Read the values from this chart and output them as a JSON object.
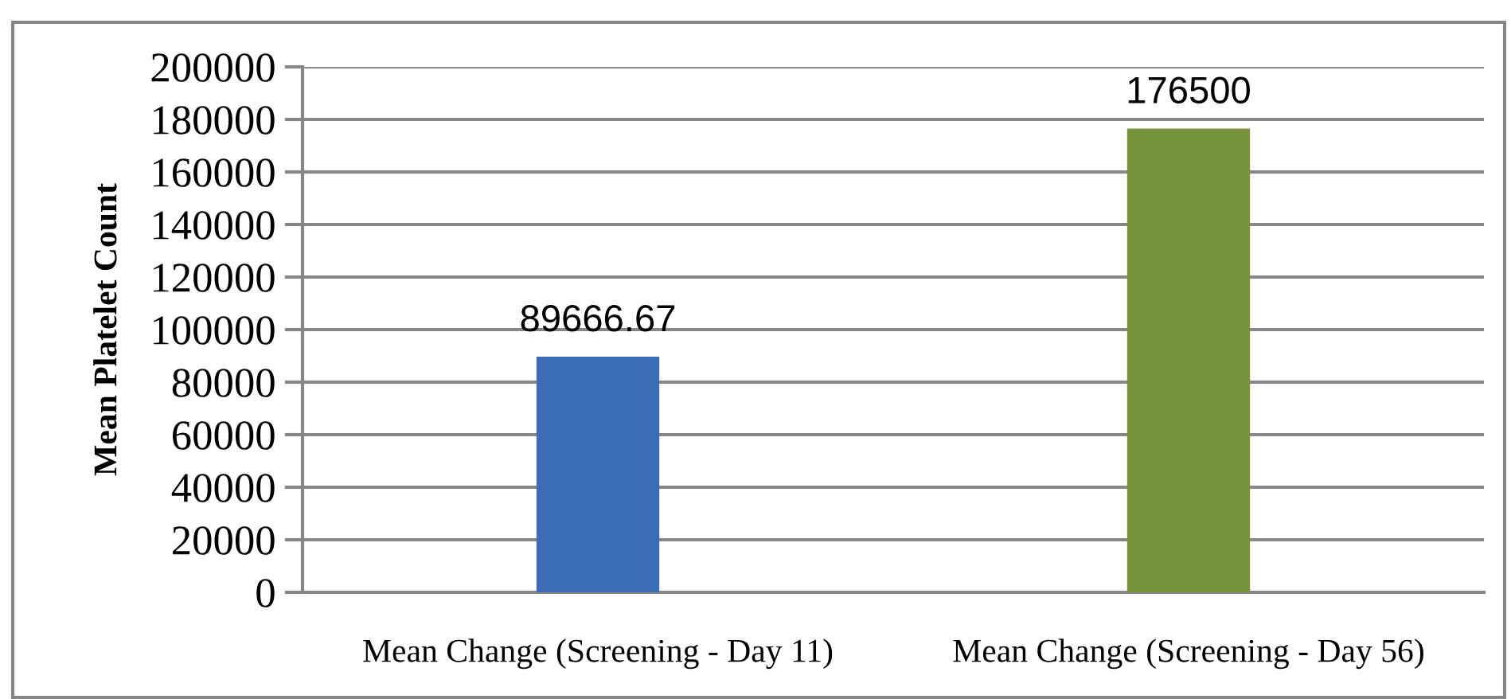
{
  "chart_data": {
    "type": "bar",
    "ylabel": "Mean Platelet Count",
    "categories": [
      "Mean Change (Screening - Day 11)",
      "Mean Change (Screening - Day 56)"
    ],
    "values": [
      89666.67,
      176500
    ],
    "colors": [
      "#3a6db5",
      "#77933c"
    ],
    "ylim": [
      0,
      200000
    ],
    "yticks": [
      0,
      20000,
      40000,
      60000,
      80000,
      100000,
      120000,
      140000,
      160000,
      180000,
      200000
    ],
    "grid": "y",
    "data_labels": true
  }
}
